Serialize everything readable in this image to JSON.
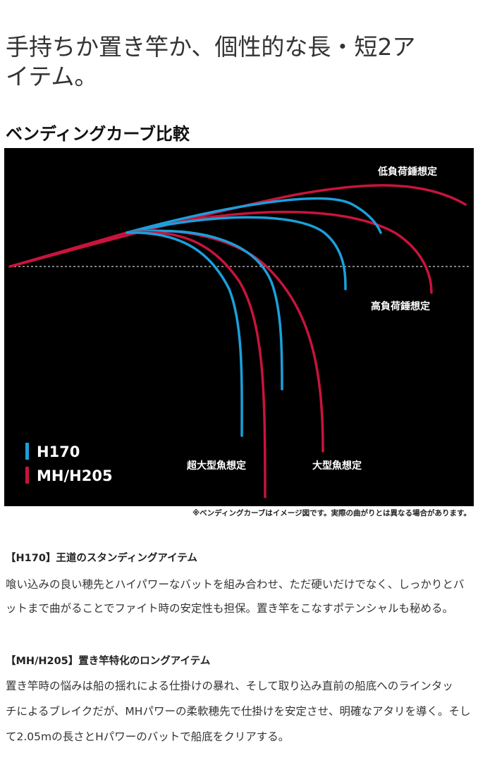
{
  "header": {
    "title_lines": [
      "手持ちか置き竿か、個性的な長・短2ア",
      "イテム。"
    ]
  },
  "section": {
    "title": "ベンディングカーブ比較"
  },
  "diagram": {
    "legend": [
      {
        "label": "H170",
        "color": "#1aa0dc"
      },
      {
        "label": "MH/H205",
        "color": "#c8143c"
      }
    ],
    "curve_labels": {
      "low_load": "低負荷錘想定",
      "high_load": "高負荷錘想定",
      "extra_large_fish": "超大型魚想定",
      "large_fish": "大型魚想定"
    },
    "note": "※ベンディングカーブはイメージ図です。実際の曲がりとは異なる場合があります。"
  },
  "items": [
    {
      "title": "【H170】王道のスタンディングアイテム",
      "lines": [
        "喰い込みの良い穂先とハイパワーなバットを組み合わせ、ただ硬いだけでなく、しっかりとバ",
        "ットまで曲がることでファイト時の安定性も担保。置き竿をこなすポテンシャルも秘める。"
      ]
    },
    {
      "title": "【MH/H205】置き竿特化のロングアイテム",
      "lines": [
        "置き竿時の悩みは船の揺れによる仕掛けの暴れ、そして取り込み直前の船底へのラインタッ",
        "チによるブレイクだが、MHパワーの柔軟穂先で仕掛けを安定させ、明確なアタリを導く。そし",
        "て2.05mの長さとHパワーのバットで船底をクリアする。"
      ]
    }
  ]
}
